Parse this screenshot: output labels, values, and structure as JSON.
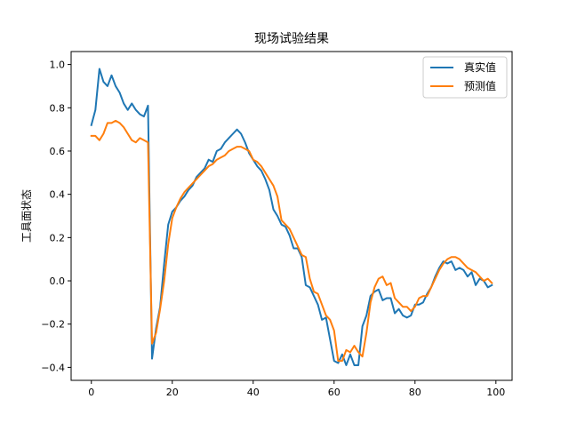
{
  "chart_data": {
    "type": "line",
    "title": "现场试验结果",
    "xlabel": "",
    "ylabel": "工具面状态",
    "xlim": [
      -5,
      104
    ],
    "ylim": [
      -0.46,
      1.06
    ],
    "xticks": [
      0,
      20,
      40,
      60,
      80,
      100
    ],
    "yticks": [
      -0.4,
      -0.2,
      0.0,
      0.2,
      0.4,
      0.6,
      0.8,
      1.0
    ],
    "xtick_labels": [
      "0",
      "20",
      "40",
      "60",
      "80",
      "100"
    ],
    "ytick_labels": [
      "−0.4",
      "−0.2",
      "0.0",
      "0.2",
      "0.4",
      "0.6",
      "0.8",
      "1.0"
    ],
    "grid": false,
    "legend_position": "top-right",
    "series": [
      {
        "name": "真实值",
        "color": "#1f77b4",
        "x": [
          0,
          1,
          2,
          3,
          4,
          5,
          6,
          7,
          8,
          9,
          10,
          11,
          12,
          13,
          14,
          15,
          16,
          17,
          18,
          19,
          20,
          21,
          22,
          23,
          24,
          25,
          26,
          27,
          28,
          29,
          30,
          31,
          32,
          33,
          34,
          35,
          36,
          37,
          38,
          39,
          40,
          41,
          42,
          43,
          44,
          45,
          46,
          47,
          48,
          49,
          50,
          51,
          52,
          53,
          54,
          55,
          56,
          57,
          58,
          59,
          60,
          61,
          62,
          63,
          64,
          65,
          66,
          67,
          68,
          69,
          70,
          71,
          72,
          73,
          74,
          75,
          76,
          77,
          78,
          79,
          80,
          81,
          82,
          83,
          84,
          85,
          86,
          87,
          88,
          89,
          90,
          91,
          92,
          93,
          94,
          95,
          96,
          97,
          98,
          99
        ],
        "values": [
          0.72,
          0.79,
          0.98,
          0.92,
          0.9,
          0.95,
          0.9,
          0.87,
          0.82,
          0.79,
          0.82,
          0.79,
          0.77,
          0.76,
          0.81,
          -0.36,
          -0.22,
          -0.12,
          0.08,
          0.26,
          0.32,
          0.34,
          0.37,
          0.39,
          0.42,
          0.44,
          0.48,
          0.5,
          0.52,
          0.56,
          0.55,
          0.6,
          0.61,
          0.64,
          0.66,
          0.68,
          0.7,
          0.68,
          0.64,
          0.59,
          0.56,
          0.53,
          0.51,
          0.47,
          0.42,
          0.33,
          0.3,
          0.26,
          0.25,
          0.21,
          0.15,
          0.15,
          0.11,
          -0.02,
          -0.03,
          -0.07,
          -0.11,
          -0.18,
          -0.17,
          -0.27,
          -0.37,
          -0.38,
          -0.34,
          -0.39,
          -0.34,
          -0.39,
          -0.39,
          -0.21,
          -0.16,
          -0.07,
          -0.05,
          -0.04,
          -0.09,
          -0.08,
          -0.08,
          -0.15,
          -0.13,
          -0.16,
          -0.17,
          -0.16,
          -0.11,
          -0.11,
          -0.1,
          -0.06,
          -0.03,
          0.02,
          0.06,
          0.09,
          0.08,
          0.09,
          0.05,
          0.06,
          0.05,
          0.02,
          0.04,
          -0.02,
          0.01,
          0.0,
          -0.03,
          -0.02
        ]
      },
      {
        "name": "预测值",
        "color": "#ff7f0e",
        "x": [
          0,
          1,
          2,
          3,
          4,
          5,
          6,
          7,
          8,
          9,
          10,
          11,
          12,
          13,
          14,
          15,
          16,
          17,
          18,
          19,
          20,
          21,
          22,
          23,
          24,
          25,
          26,
          27,
          28,
          29,
          30,
          31,
          32,
          33,
          34,
          35,
          36,
          37,
          38,
          39,
          40,
          41,
          42,
          43,
          44,
          45,
          46,
          47,
          48,
          49,
          50,
          51,
          52,
          53,
          54,
          55,
          56,
          57,
          58,
          59,
          60,
          61,
          62,
          63,
          64,
          65,
          66,
          67,
          68,
          69,
          70,
          71,
          72,
          73,
          74,
          75,
          76,
          77,
          78,
          79,
          80,
          81,
          82,
          83,
          84,
          85,
          86,
          87,
          88,
          89,
          90,
          91,
          92,
          93,
          94,
          95,
          96,
          97,
          98,
          99
        ],
        "values": [
          0.67,
          0.67,
          0.65,
          0.68,
          0.73,
          0.73,
          0.74,
          0.73,
          0.71,
          0.68,
          0.65,
          0.64,
          0.66,
          0.65,
          0.64,
          -0.29,
          -0.24,
          -0.13,
          0.0,
          0.17,
          0.29,
          0.34,
          0.38,
          0.41,
          0.43,
          0.45,
          0.47,
          0.49,
          0.51,
          0.53,
          0.54,
          0.56,
          0.57,
          0.58,
          0.6,
          0.61,
          0.62,
          0.62,
          0.61,
          0.6,
          0.56,
          0.55,
          0.53,
          0.5,
          0.47,
          0.44,
          0.39,
          0.28,
          0.26,
          0.24,
          0.2,
          0.16,
          0.12,
          0.11,
          0.01,
          -0.05,
          -0.06,
          -0.11,
          -0.16,
          -0.18,
          -0.23,
          -0.37,
          -0.37,
          -0.32,
          -0.33,
          -0.3,
          -0.33,
          -0.35,
          -0.24,
          -0.1,
          -0.03,
          0.01,
          0.02,
          -0.02,
          -0.01,
          -0.08,
          -0.1,
          -0.12,
          -0.12,
          -0.14,
          -0.12,
          -0.08,
          -0.07,
          -0.07,
          -0.03,
          0.01,
          0.05,
          0.08,
          0.1,
          0.11,
          0.11,
          0.1,
          0.08,
          0.06,
          0.05,
          0.04,
          0.02,
          0.0,
          0.01,
          -0.01
        ]
      }
    ]
  }
}
